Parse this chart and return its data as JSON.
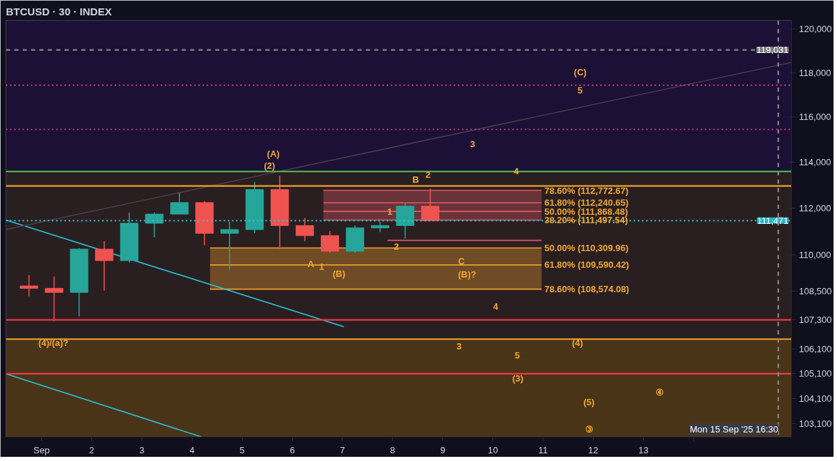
{
  "chart_data": {
    "type": "candlestick",
    "title": "BTCUSD · 30 · INDEX",
    "log": "y",
    "x": [
      0.75,
      1.25,
      1.75,
      2.25,
      2.75,
      3.25,
      3.75,
      4.25,
      4.75,
      5.25,
      5.75,
      6.25,
      6.75,
      7.25,
      7.75,
      8.25,
      8.75
    ],
    "ohlc": [
      [
        108710,
        109170,
        108280,
        108610
      ],
      [
        108610,
        109100,
        107250,
        108440
      ],
      [
        108440,
        110300,
        107450,
        110260
      ],
      [
        110260,
        110600,
        108510,
        109770
      ],
      [
        109770,
        111820,
        109700,
        111360
      ],
      [
        111360,
        111820,
        110760,
        111750
      ],
      [
        111750,
        112680,
        111750,
        112250
      ],
      [
        112250,
        112300,
        110430,
        110930
      ],
      [
        110930,
        111420,
        109370,
        111090
      ],
      [
        111090,
        113140,
        110930,
        112810
      ],
      [
        112810,
        113410,
        110260,
        111260
      ],
      [
        111260,
        111590,
        110600,
        110830
      ],
      [
        110830,
        111030,
        110100,
        110170
      ],
      [
        110170,
        111260,
        110100,
        111160
      ],
      [
        111160,
        111420,
        110990,
        111260
      ],
      [
        111260,
        112250,
        110700,
        112090
      ],
      [
        112090,
        112850,
        111470,
        111470
      ]
    ],
    "colors": [
      "#ef5350",
      "#ef5350",
      "#26a69a",
      "#ef5350",
      "#26a69a",
      "#26a69a",
      "#26a69a",
      "#ef5350",
      "#26a69a",
      "#26a69a",
      "#ef5350",
      "#ef5350",
      "#ef5350",
      "#26a69a",
      "#26a69a",
      "#26a69a",
      "#ef5350"
    ],
    "xlim": [
      0.29,
      15.95
    ],
    "ylim": [
      102580,
      120380
    ],
    "xticks": [
      {
        "value": 1,
        "label": "Sep"
      },
      2,
      3,
      4,
      5,
      6,
      7,
      8,
      9,
      10,
      11,
      12,
      13,
      {
        "value": 14,
        "label": null
      }
    ],
    "yticks": [
      {
        "value": 103100,
        "label": "103,100"
      },
      {
        "value": 104100,
        "label": "104,100"
      },
      {
        "value": 105100,
        "label": "105,100"
      },
      {
        "value": 106100,
        "label": "106,100"
      },
      {
        "value": 107300,
        "label": "107,300"
      },
      {
        "value": 108500,
        "label": "108,500"
      },
      {
        "value": 110000,
        "label": "110,000"
      },
      {
        "value": 112000,
        "label": "112,000"
      },
      {
        "value": 114000,
        "label": "114,000"
      },
      {
        "value": 116000,
        "label": "116,000"
      },
      {
        "value": 118000,
        "label": "118,000"
      },
      {
        "value": 120000,
        "label": "120,000"
      }
    ],
    "bands": [
      {
        "axis": "y",
        "from": 113600,
        "to": 120380,
        "color": "#1c1036"
      },
      {
        "axis": "y",
        "from": 106510,
        "to": 113600,
        "color": "#2a1f20"
      },
      {
        "axis": "y",
        "from": 102580,
        "to": 106510,
        "color": "#4a3418"
      }
    ],
    "ref_lines": [
      {
        "axis": "y",
        "value": 113600,
        "color": "#4caf50",
        "line_style": "solid"
      },
      {
        "axis": "y",
        "value": 112970,
        "color": "#f0a030",
        "line_style": "solid"
      },
      {
        "axis": "y",
        "value": 107300,
        "color": "#f23645",
        "line_style": "solid"
      },
      {
        "axis": "y",
        "value": 106510,
        "color": "#f0a030",
        "line_style": "solid"
      },
      {
        "axis": "y",
        "value": 105100,
        "color": "#f23645",
        "line_style": "solid"
      },
      {
        "axis": "y",
        "value": 117430,
        "color": "#c04080",
        "line_style": "dotted"
      },
      {
        "axis": "y",
        "value": 115450,
        "color": "#c04080",
        "line_style": "dotted"
      },
      {
        "axis": "y",
        "value": 119031,
        "label": "119,031",
        "color": "#888888",
        "line_style": "dashed"
      },
      {
        "axis": "y",
        "value": 111471,
        "label": "111,471",
        "color": "#26c6da",
        "line_style": "dotted"
      },
      {
        "axis": "x",
        "value": 15.69,
        "label": "Mon 15 Sep '25 16:30",
        "color": "#888888",
        "line_style": "dashed"
      }
    ],
    "series": [
      {
        "type": "line",
        "x": [
          4.36,
          10.97
        ],
        "values": [
          109590.42,
          109590.42
        ],
        "lower": [
          108574.08,
          108574.08
        ],
        "upper": [
          110309.96,
          110309.96
        ],
        "color": "#f0a030",
        "line_style": "solid"
      },
      {
        "type": "line",
        "x": [
          6.62,
          10.97
        ],
        "values": [
          111868.48,
          111868.48
        ],
        "lower": [
          111497.54,
          111497.54
        ],
        "upper": [
          112772.67,
          112772.67
        ],
        "color": "#e05a6a",
        "line_style": "solid"
      },
      {
        "type": "line",
        "x": [
          6.62,
          10.97
        ],
        "values": [
          112240.65,
          112240.65
        ],
        "color": "#e05a6a",
        "line_style": "solid"
      },
      {
        "type": "line",
        "x": [
          7.9,
          10.97
        ],
        "values": [
          110630,
          110630
        ],
        "color": "#e05a6a",
        "line_style": "solid"
      },
      {
        "type": "line",
        "x": [
          0.29,
          7.03
        ],
        "values": [
          111500,
          107020
        ],
        "color": "#26c6da",
        "line_style": "solid"
      },
      {
        "type": "line",
        "x": [
          0.29,
          4.19
        ],
        "values": [
          105100,
          102580
        ],
        "color": "#26c6da",
        "line_style": "solid"
      },
      {
        "type": "line",
        "x": [
          0.29,
          15.95
        ],
        "values": [
          111090,
          118460
        ],
        "color": "#4a3a4a",
        "line_style": "solid"
      }
    ],
    "annotations": [
      {
        "text": "78.60% (112,772.67)",
        "x": 10.97,
        "y": 112772.67
      },
      {
        "text": "61.80% (112,240.65)",
        "x": 10.97,
        "y": 112240.65
      },
      {
        "text": "50.00% (111,868.48)",
        "x": 10.97,
        "y": 111868.48
      },
      {
        "text": "38.20% (111,497.54)",
        "x": 10.97,
        "y": 111497.54
      },
      {
        "text": "50.00% (110,309.96)",
        "x": 10.97,
        "y": 110309.96
      },
      {
        "text": "61.80% (109,590.42)",
        "x": 10.97,
        "y": 109590.42
      },
      {
        "text": "78.60% (108,574.08)",
        "x": 10.97,
        "y": 108574.08
      },
      {
        "text": "4",
        "x": 10.36,
        "y": 113600
      },
      {
        "text": "2",
        "x": 8.6,
        "y": 113450
      },
      {
        "text": "1",
        "x": 7.84,
        "y": 111870
      },
      {
        "text": "2",
        "x": 7.97,
        "y": 110380
      },
      {
        "text": "A",
        "x": 6.25,
        "y": 109620
      },
      {
        "text": "1",
        "x": 6.48,
        "y": 109520
      },
      "(C)",
      "5",
      "3",
      "(A)",
      "(2)",
      "B",
      "(B)",
      "C",
      "(B)?",
      "4",
      "(4)/(a)?",
      "3",
      "(4)",
      "5",
      "(3)",
      "(5)",
      "④",
      "③"
    ]
  }
}
